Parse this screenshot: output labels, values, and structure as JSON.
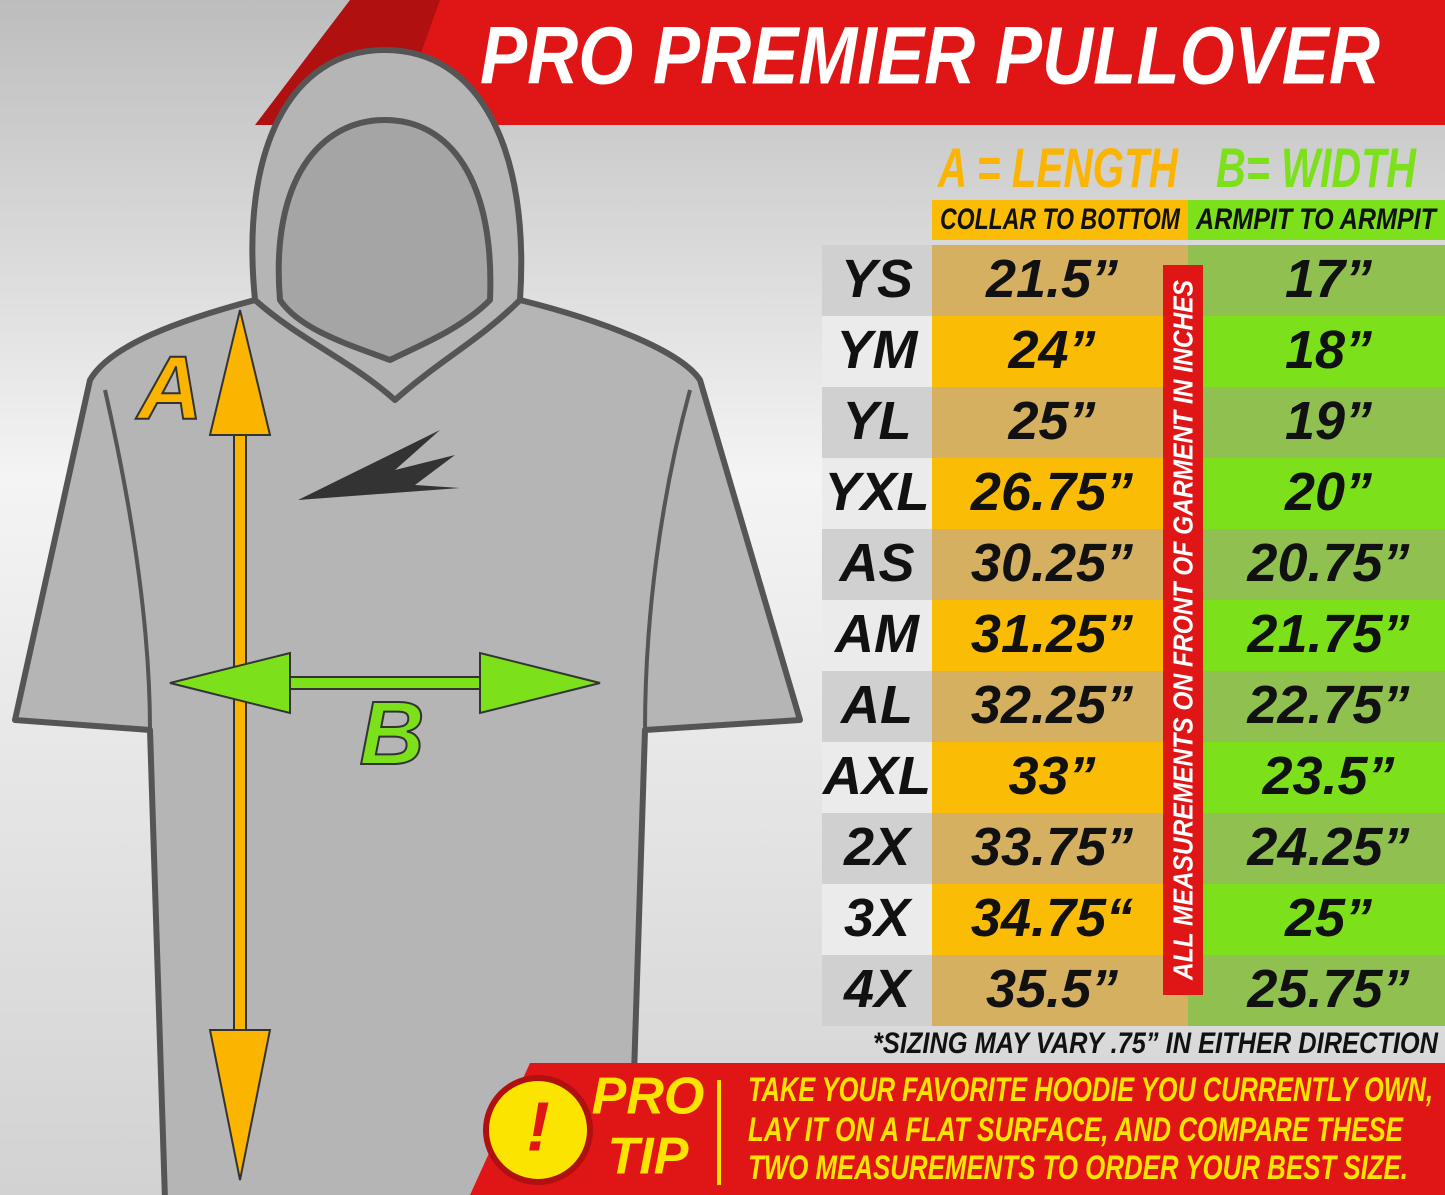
{
  "header": {
    "title": "PRO PREMIER PULLOVER"
  },
  "diagram": {
    "a_label": "A",
    "b_label": "B"
  },
  "table": {
    "columns": [
      {
        "title": "A = LENGTH",
        "subtitle": "COLLAR TO BOTTOM"
      },
      {
        "title": "B= WIDTH",
        "subtitle": "ARMPIT TO ARMPIT"
      }
    ],
    "rows": [
      [
        "YS",
        "21.5”",
        "17”"
      ],
      [
        "YM",
        "24”",
        "18”"
      ],
      [
        "YL",
        "25”",
        "19”"
      ],
      [
        "YXL",
        "26.75”",
        "20”"
      ],
      [
        "AS",
        "30.25”",
        "20.75”"
      ],
      [
        "AM",
        "31.25”",
        "21.75”"
      ],
      [
        "AL",
        "32.25”",
        "22.75”"
      ],
      [
        "AXL",
        "33”",
        "23.5”"
      ],
      [
        "2X",
        "33.75”",
        "24.25”"
      ],
      [
        "3X",
        "34.75“",
        "25”"
      ],
      [
        "4X",
        "35.5”",
        "25.75”"
      ]
    ]
  },
  "side_note": "ALL MEASUREMENTS ON FRONT OF GARMENT IN INCHES",
  "footnote": "*SIZING MAY VARY .75” IN EITHER DIRECTION",
  "tip": {
    "icon": "!",
    "label_lines": [
      "PRO",
      "TIP"
    ],
    "lines": [
      "TAKE YOUR FAVORITE HOODIE YOU CURRENTLY OWN,",
      "LAY IT ON A FLAT SURFACE, AND COMPARE THESE",
      "TWO MEASUREMENTS TO ORDER YOUR BEST SIZE."
    ]
  }
}
